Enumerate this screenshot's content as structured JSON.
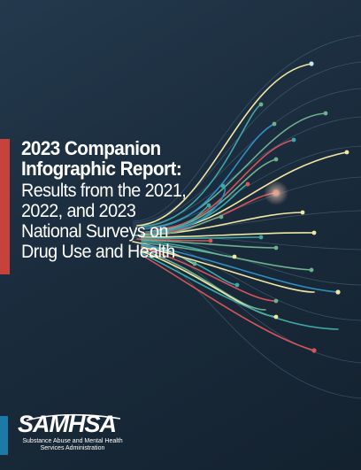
{
  "cover": {
    "title_line1": "2023 Companion",
    "title_line2": "Infographic Report:",
    "subtitle_line1": "Results from the 2021,",
    "subtitle_line2": "2022, and 2023",
    "subtitle_line3": "National Surveys on",
    "subtitle_line4": "Drug Use and Health"
  },
  "logo": {
    "wordmark": "SAMHSA",
    "subtitle_line1": "Substance Abuse and Mental Health",
    "subtitle_line2": "Services Administration"
  },
  "colors": {
    "background": "#1b2d3e",
    "accent_red": "#c8423c",
    "accent_blue": "#1c7aa8",
    "line_yellow": "#f1e6a2",
    "line_teal": "#3fa7a9",
    "line_blue": "#2f8fc4",
    "line_green": "#6fb08f",
    "line_red": "#d6545a"
  }
}
